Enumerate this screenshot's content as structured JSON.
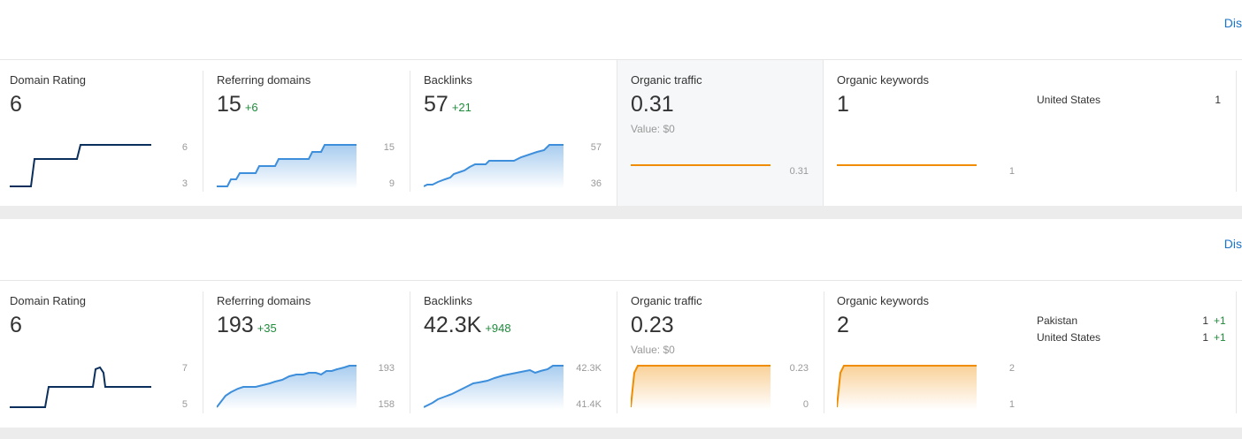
{
  "colors": {
    "dark_line": "#0b2f5c",
    "blue_line": "#3d8edb",
    "orange_line": "#f08c00",
    "delta_green": "#1e8b3a",
    "link_blue": "#1a73c9"
  },
  "header_link": "Dis",
  "blocks": [
    {
      "metrics": {
        "domain_rating": {
          "title": "Domain Rating",
          "value": "6",
          "axis_max": "6",
          "axis_min": "3"
        },
        "referring_domains": {
          "title": "Referring domains",
          "value": "15",
          "delta": "+6",
          "axis_max": "15",
          "axis_min": "9"
        },
        "backlinks": {
          "title": "Backlinks",
          "value": "57",
          "delta": "+21",
          "axis_max": "57",
          "axis_min": "36"
        },
        "organic_traffic": {
          "title": "Organic traffic",
          "value": "0.31",
          "sub": "Value: $0",
          "axis_val": "0.31"
        },
        "organic_keywords": {
          "title": "Organic keywords",
          "value": "1",
          "axis_val": "1"
        }
      },
      "countries": [
        {
          "name": "United States",
          "value": "1",
          "delta": ""
        }
      ]
    },
    {
      "metrics": {
        "domain_rating": {
          "title": "Domain Rating",
          "value": "6",
          "axis_max": "7",
          "axis_min": "5"
        },
        "referring_domains": {
          "title": "Referring domains",
          "value": "193",
          "delta": "+35",
          "axis_max": "193",
          "axis_min": "158"
        },
        "backlinks": {
          "title": "Backlinks",
          "value": "42.3K",
          "delta": "+948",
          "axis_max": "42.3K",
          "axis_min": "41.4K"
        },
        "organic_traffic": {
          "title": "Organic traffic",
          "value": "0.23",
          "sub": "Value: $0",
          "axis_max": "0.23",
          "axis_min": "0"
        },
        "organic_keywords": {
          "title": "Organic keywords",
          "value": "2",
          "axis_max": "2",
          "axis_min": "1"
        }
      },
      "countries": [
        {
          "name": "Pakistan",
          "value": "1",
          "delta": "+1"
        },
        {
          "name": "United States",
          "value": "1",
          "delta": "+1"
        }
      ]
    }
  ]
}
